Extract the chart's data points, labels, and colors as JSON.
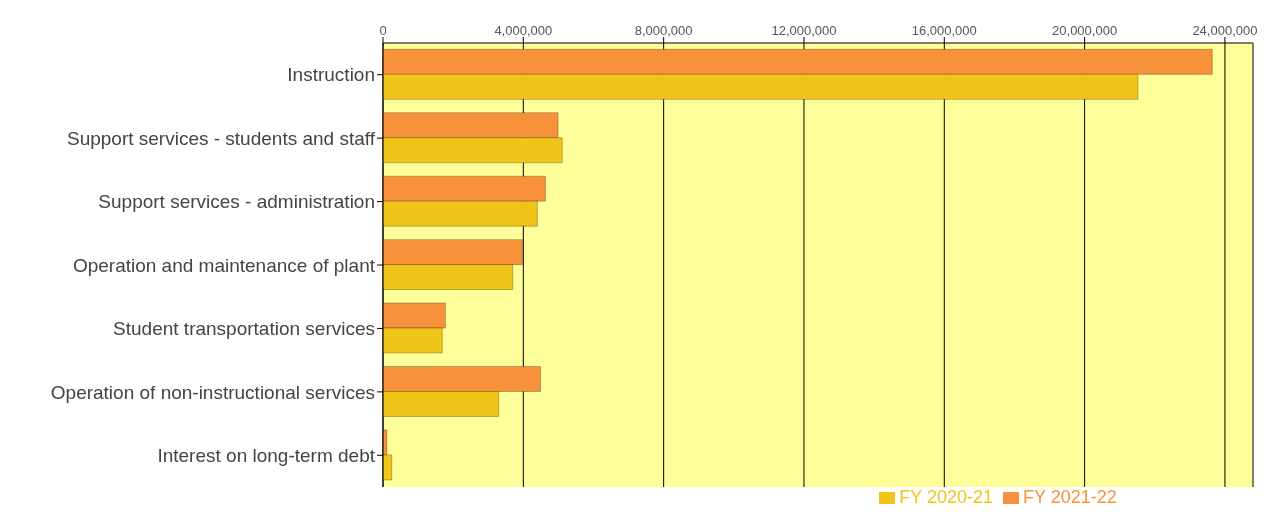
{
  "chart_data": {
    "type": "bar",
    "orientation": "horizontal",
    "categories": [
      "Instruction",
      "Support services - students and staff",
      "Support services - administration",
      "Operation and maintenance of plant",
      "Student transportation services",
      "Operation of non-instructional services",
      "Interest on long-term debt"
    ],
    "series": [
      {
        "name": "FY 2021-22",
        "color": "#f7923a",
        "values": [
          23640000,
          4990000,
          4630000,
          3980000,
          1780000,
          4490000,
          110000
        ]
      },
      {
        "name": "FY 2020-21",
        "color": "#f0c419",
        "values": [
          21520000,
          5110000,
          4400000,
          3700000,
          1690000,
          3300000,
          250000
        ]
      }
    ],
    "xlim": [
      0,
      24800000
    ],
    "xticks": [
      {
        "value": 0,
        "label": "0"
      },
      {
        "value": 4000000,
        "label": "4,000,000"
      },
      {
        "value": 8000000,
        "label": "8,000,000"
      },
      {
        "value": 12000000,
        "label": "12,000,000"
      },
      {
        "value": 16000000,
        "label": "16,000,000"
      },
      {
        "value": 20000000,
        "label": "20,000,000"
      },
      {
        "value": 24000000,
        "label": "24,000,000"
      }
    ],
    "grid": "x",
    "legend": "bottom"
  }
}
